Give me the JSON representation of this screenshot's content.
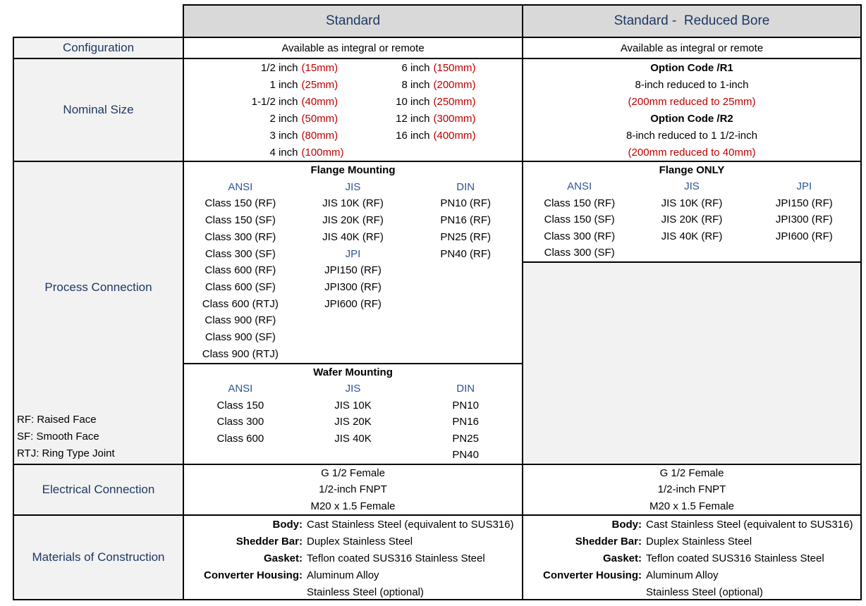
{
  "colors": {
    "navy_label_text": "#1F3864",
    "standards_blue_text": "#2F5496",
    "metric_red_text": "#C00000",
    "header_fill": "#D9D9D9",
    "label_fill": "#F2F2F2",
    "border": "#000000"
  },
  "header": {
    "standard_label": "Standard",
    "reduced_label": "Standard -  Reduced Bore"
  },
  "configuration": {
    "label": "Configuration",
    "standard": "Available as integral or remote",
    "reduced": "Available as integral or remote"
  },
  "nominal": {
    "label": "Nominal Size",
    "standard_col1": [
      {
        "inch": "1/2 inch",
        "mm": "(15mm)"
      },
      {
        "inch": "1 inch",
        "mm": "(25mm)"
      },
      {
        "inch": "1-1/2 inch",
        "mm": "(40mm)"
      },
      {
        "inch": "2 inch",
        "mm": "(50mm)"
      },
      {
        "inch": "3 inch",
        "mm": "(80mm)"
      },
      {
        "inch": "4 inch",
        "mm": "(100mm)"
      }
    ],
    "standard_col2": [
      {
        "inch": "6 inch",
        "mm": "(150mm)"
      },
      {
        "inch": "8 inch",
        "mm": "(200mm)"
      },
      {
        "inch": "10 inch",
        "mm": "(250mm)"
      },
      {
        "inch": "12 inch",
        "mm": "(300mm)"
      },
      {
        "inch": "16 inch",
        "mm": "(400mm)"
      }
    ],
    "reduced": {
      "option1_title": "Option Code /R1",
      "option1_desc": "8-inch reduced to 1-inch",
      "option1_metric": "(200mm reduced to 25mm)",
      "option2_title": "Option Code /R2",
      "option2_desc": "8-inch reduced to 1 1/2-inch",
      "option2_metric": "(200mm reduced to 40mm)"
    }
  },
  "process": {
    "label": "Process Connection",
    "footnotes": [
      "RF: Raised Face",
      "SF: Smooth Face",
      "RTJ: Ring Type Joint"
    ],
    "standard_flange": {
      "title": "Flange Mounting",
      "headers": {
        "ansi": "ANSI",
        "jis": "JIS",
        "din": "DIN",
        "jpi": "JPI"
      },
      "ansi": [
        "Class 150 (RF)",
        "Class 150 (SF)",
        "Class 300 (RF)",
        "Class 300 (SF)",
        "Class 600 (RF)",
        "Class 600 (SF)",
        "Class 600 (RTJ)",
        "Class 900 (RF)",
        "Class 900 (SF)",
        "Class 900 (RTJ)"
      ],
      "jis": [
        "JIS 10K (RF)",
        "JIS 20K (RF)",
        "JIS 40K (RF)"
      ],
      "jpi": [
        "JPI150 (RF)",
        "JPI300 (RF)",
        "JPI600 (RF)"
      ],
      "din": [
        "PN10 (RF)",
        "PN16 (RF)",
        "PN25 (RF)",
        "PN40 (RF)"
      ]
    },
    "standard_wafer": {
      "title": "Wafer Mounting",
      "headers": {
        "ansi": "ANSI",
        "jis": "JIS",
        "din": "DIN"
      },
      "ansi": [
        "Class 150",
        "Class 300",
        "Class 600"
      ],
      "jis": [
        "JIS 10K",
        "JIS 20K",
        "JIS 40K"
      ],
      "din": [
        "PN10",
        "PN16",
        "PN25",
        "PN40"
      ]
    },
    "reduced_flange": {
      "title": "Flange ONLY",
      "headers": {
        "ansi": "ANSI",
        "jis": "JIS",
        "jpi": "JPI"
      },
      "ansi": [
        "Class 150 (RF)",
        "Class 150 (SF)",
        "Class 300 (RF)",
        "Class 300 (SF)"
      ],
      "jis": [
        "JIS 10K (RF)",
        "JIS 20K (RF)",
        "JIS 40K (RF)"
      ],
      "jpi": [
        "JPI150 (RF)",
        "JPI300 (RF)",
        "JPI600 (RF)"
      ]
    }
  },
  "electrical": {
    "label": "Electrical Connection",
    "standard": [
      "G 1/2 Female",
      "1/2-inch FNPT",
      "M20 x 1.5 Female"
    ],
    "reduced": [
      "G 1/2 Female",
      "1/2-inch FNPT",
      "M20 x 1.5 Female"
    ]
  },
  "materials": {
    "label": "Materials of Construction",
    "standard": [
      {
        "k": "Body:",
        "v": "Cast Stainless Steel (equivalent to SUS316)"
      },
      {
        "k": "Shedder Bar:",
        "v": "Duplex Stainless Steel"
      },
      {
        "k": "Gasket:",
        "v": "Teflon coated SUS316 Stainless Steel"
      },
      {
        "k": "Converter Housing:",
        "v": "Aluminum Alloy"
      },
      {
        "k": "",
        "v": "Stainless Steel (optional)"
      }
    ],
    "reduced": [
      {
        "k": "Body:",
        "v": "Cast Stainless Steel (equivalent to SUS316)"
      },
      {
        "k": "Shedder Bar:",
        "v": "Duplex Stainless Steel"
      },
      {
        "k": "Gasket:",
        "v": "Teflon coated SUS316 Stainless Steel"
      },
      {
        "k": "Converter Housing:",
        "v": "Aluminum Alloy"
      },
      {
        "k": "",
        "v": "Stainless Steel (optional)"
      }
    ]
  }
}
